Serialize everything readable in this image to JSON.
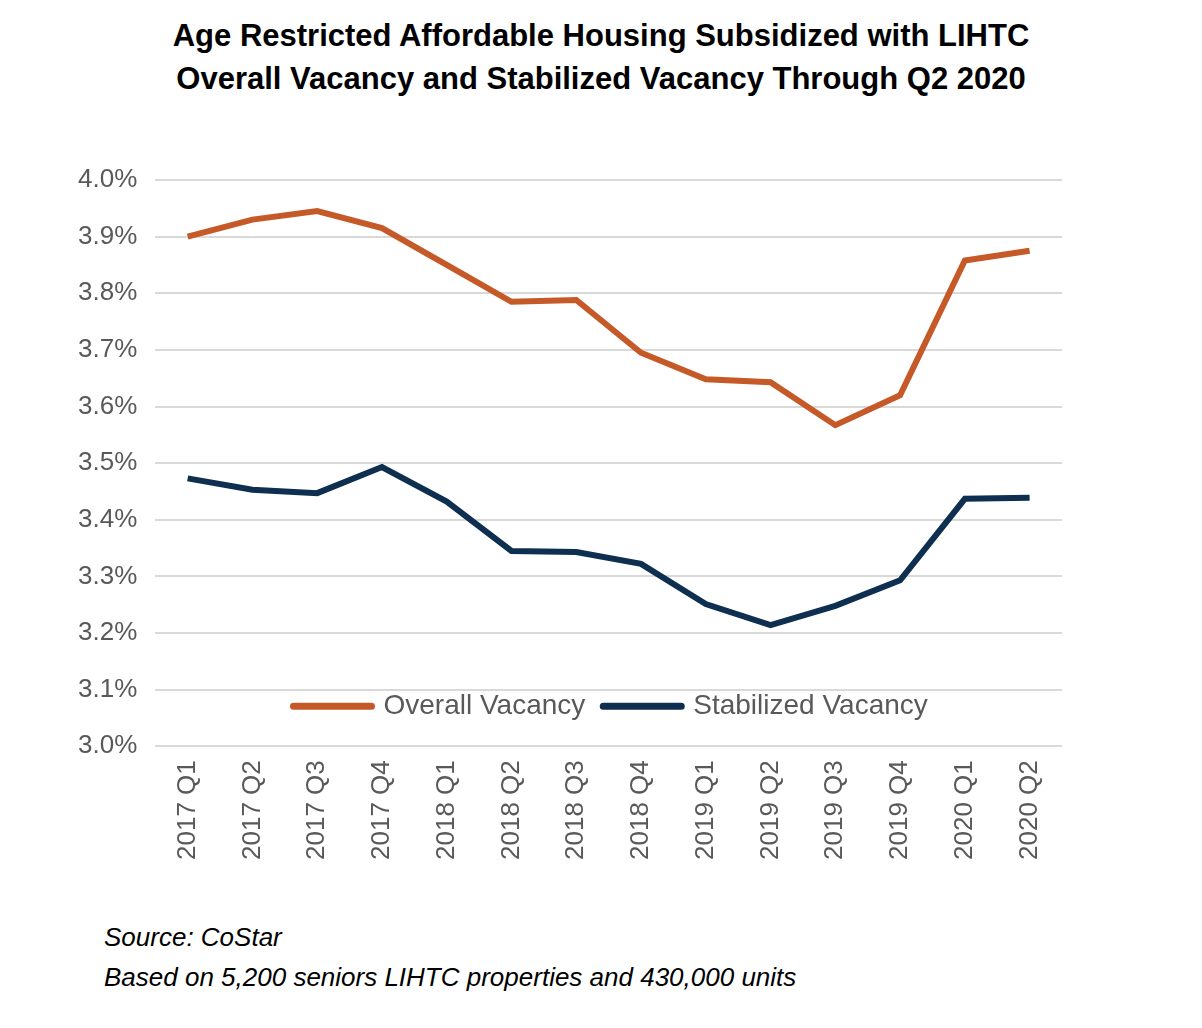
{
  "chart_data": {
    "type": "line",
    "title": "Age Restricted Affordable Housing Subsidized with LIHTC",
    "subtitle": "Overall Vacancy and Stabilized Vacancy Through Q2 2020",
    "annotations": [
      "Source: CoStar",
      "Based on 5,200 seniors LIHTC properties and 430,000 units"
    ],
    "categories": [
      "2017 Q1",
      "2017 Q2",
      "2017 Q3",
      "2017 Q4",
      "2018 Q1",
      "2018 Q2",
      "2018 Q3",
      "2018 Q4",
      "2019 Q1",
      "2019 Q2",
      "2019 Q3",
      "2019 Q4",
      "2020 Q1",
      "2020 Q2"
    ],
    "series": [
      {
        "name": "Overall Vacancy",
        "color": "#c55a28",
        "values": [
          3.9,
          3.93,
          3.945,
          3.915,
          3.85,
          3.785,
          3.788,
          3.695,
          3.648,
          3.643,
          3.567,
          3.62,
          3.858,
          3.875
        ]
      },
      {
        "name": "Stabilized Vacancy",
        "color": "#0e2f4f",
        "values": [
          3.473,
          3.453,
          3.447,
          3.493,
          3.432,
          3.345,
          3.343,
          3.322,
          3.251,
          3.214,
          3.248,
          3.293,
          3.437,
          3.439
        ]
      }
    ],
    "ylim": [
      3.0,
      4.0
    ],
    "yticks": [
      {
        "value": 3.0,
        "label": "3.0%"
      },
      {
        "value": 3.1,
        "label": "3.1%"
      },
      {
        "value": 3.2,
        "label": "3.2%"
      },
      {
        "value": 3.3,
        "label": "3.3%"
      },
      {
        "value": 3.4,
        "label": "3.4%"
      },
      {
        "value": 3.5,
        "label": "3.5%"
      },
      {
        "value": 3.6,
        "label": "3.6%"
      },
      {
        "value": 3.7,
        "label": "3.7%"
      },
      {
        "value": 3.8,
        "label": "3.8%"
      },
      {
        "value": 3.9,
        "label": "3.9%"
      },
      {
        "value": 4.0,
        "label": "4.0%"
      }
    ],
    "grid": true,
    "legend": "bottom"
  }
}
